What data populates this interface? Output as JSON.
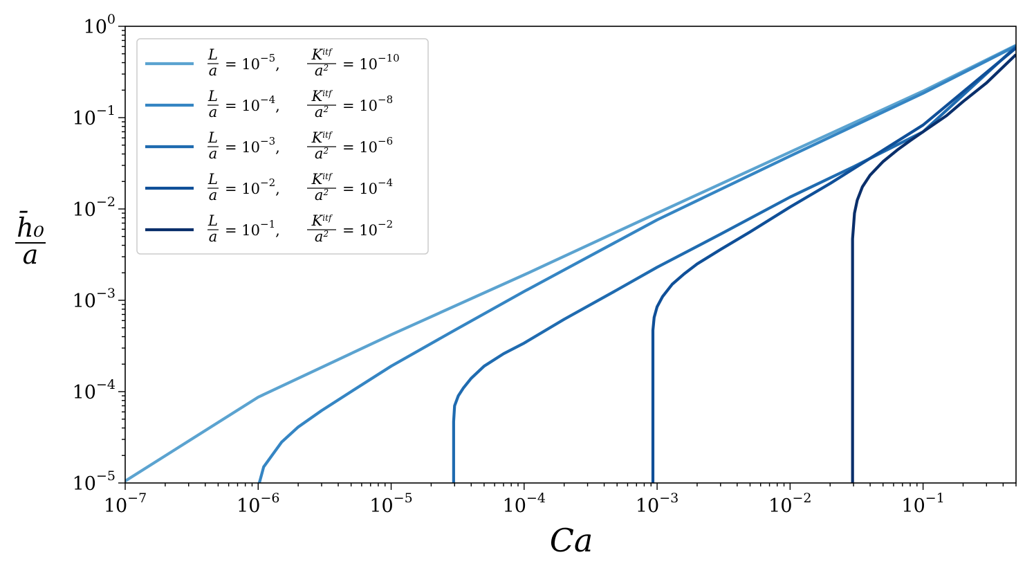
{
  "chart_data": {
    "type": "line",
    "xscale": "log",
    "yscale": "log",
    "xlabel": "Ca",
    "ylabel_num": "h̄₀",
    "ylabel_den": "a",
    "xlim": [
      1e-07,
      0.5
    ],
    "ylim": [
      1e-05,
      1
    ],
    "grid": false,
    "legend_placement": "top-left",
    "x_ticks": [
      {
        "value": 1e-07,
        "base": "10",
        "exp": "−7"
      },
      {
        "value": 1e-06,
        "base": "10",
        "exp": "−6"
      },
      {
        "value": 1e-05,
        "base": "10",
        "exp": "−5"
      },
      {
        "value": 0.0001,
        "base": "10",
        "exp": "−4"
      },
      {
        "value": 0.001,
        "base": "10",
        "exp": "−3"
      },
      {
        "value": 0.01,
        "base": "10",
        "exp": "−2"
      },
      {
        "value": 0.1,
        "base": "10",
        "exp": "−1"
      }
    ],
    "y_ticks": [
      {
        "value": 1e-05,
        "base": "10",
        "exp": "−5"
      },
      {
        "value": 0.0001,
        "base": "10",
        "exp": "−4"
      },
      {
        "value": 0.001,
        "base": "10",
        "exp": "−3"
      },
      {
        "value": 0.01,
        "base": "10",
        "exp": "−2"
      },
      {
        "value": 0.1,
        "base": "10",
        "exp": "−1"
      },
      {
        "value": 1,
        "base": "10",
        "exp": "0"
      }
    ],
    "series": [
      {
        "name": "L/a = 10^−5, K^itf/a² = 10^−10",
        "label_parts": {
          "l_exp": "−5",
          "k_exp": "−10"
        },
        "color": "#5ba3d0",
        "x": [
          1e-07,
          1e-06,
          1e-05,
          0.0001,
          0.001,
          0.01,
          0.1,
          0.5
        ],
        "y": [
          1.05e-05,
          8.7e-05,
          0.00042,
          0.0019,
          0.009,
          0.042,
          0.195,
          0.62
        ]
      },
      {
        "name": "L/a = 10^−4, K^itf/a² = 10^−8",
        "label_parts": {
          "l_exp": "−4",
          "k_exp": "−8"
        },
        "color": "#3585c3",
        "x": [
          1.02e-06,
          1.1e-06,
          1.5e-06,
          2e-06,
          3e-06,
          5e-06,
          1e-05,
          3e-05,
          0.0001,
          0.001,
          0.01,
          0.1,
          0.5
        ],
        "y": [
          1e-05,
          1.5e-05,
          2.8e-05,
          4.1e-05,
          6.2e-05,
          0.0001,
          0.00019,
          0.00047,
          0.00125,
          0.0076,
          0.038,
          0.185,
          0.61
        ]
      },
      {
        "name": "L/a = 10^−3, K^itf/a² = 10^−6",
        "label_parts": {
          "l_exp": "−3",
          "k_exp": "−6"
        },
        "color": "#1f6bb0",
        "x": [
          2.95e-05,
          2.95e-05,
          3e-05,
          3.2e-05,
          3.5e-05,
          4e-05,
          5e-05,
          7e-05,
          0.0001,
          0.0002,
          0.0005,
          0.001,
          0.003,
          0.01,
          0.03,
          0.1,
          0.5
        ],
        "y": [
          1e-05,
          4.7e-05,
          7e-05,
          9e-05,
          0.00011,
          0.00014,
          0.00019,
          0.00026,
          0.00034,
          0.00062,
          0.0013,
          0.0023,
          0.0053,
          0.0135,
          0.029,
          0.07,
          0.6
        ]
      },
      {
        "name": "L/a = 10^−2, K^itf/a² = 10^−4",
        "label_parts": {
          "l_exp": "−2",
          "k_exp": "−4"
        },
        "color": "#0f4f98",
        "x": [
          0.00093,
          0.00093,
          0.00095,
          0.001,
          0.0011,
          0.0013,
          0.0016,
          0.002,
          0.003,
          0.005,
          0.01,
          0.02,
          0.05,
          0.1,
          0.5
        ],
        "y": [
          1e-05,
          0.00047,
          0.00065,
          0.00085,
          0.0011,
          0.0015,
          0.00195,
          0.0025,
          0.0036,
          0.0056,
          0.0105,
          0.019,
          0.044,
          0.083,
          0.58
        ]
      },
      {
        "name": "L/a = 10^−1, K^itf/a² = 10^−2",
        "label_parts": {
          "l_exp": "−1",
          "k_exp": "−2"
        },
        "color": "#0a2f6b",
        "x": [
          0.0295,
          0.0295,
          0.0305,
          0.032,
          0.035,
          0.04,
          0.05,
          0.065,
          0.08,
          0.1,
          0.15,
          0.2,
          0.3,
          0.5
        ],
        "y": [
          1e-05,
          0.0047,
          0.009,
          0.0125,
          0.0175,
          0.0235,
          0.033,
          0.045,
          0.056,
          0.07,
          0.105,
          0.15,
          0.24,
          0.49
        ]
      }
    ]
  }
}
